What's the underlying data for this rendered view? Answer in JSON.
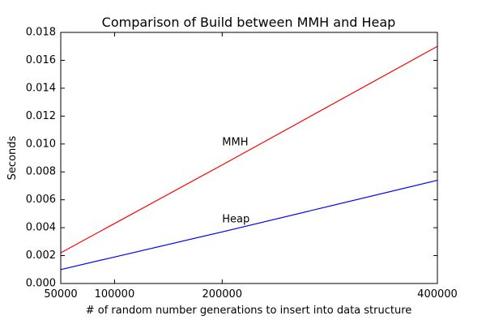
{
  "chart_data": {
    "type": "line",
    "title": "Comparison of Build between MMH and Heap",
    "xlabel": "# of random number generations to insert into data structure",
    "ylabel": "Seconds",
    "xlim": [
      50000,
      400000
    ],
    "ylim": [
      0,
      0.018
    ],
    "x_ticks": [
      {
        "value": 50000,
        "label": "50000"
      },
      {
        "value": 100000,
        "label": "100000"
      },
      {
        "value": 200000,
        "label": "200000"
      },
      {
        "value": 400000,
        "label": "400000"
      }
    ],
    "y_ticks": [
      {
        "value": 0,
        "label": "0.000"
      },
      {
        "value": 0.002,
        "label": "0.002"
      },
      {
        "value": 0.004,
        "label": "0.004"
      },
      {
        "value": 0.006,
        "label": "0.006"
      },
      {
        "value": 0.008,
        "label": "0.008"
      },
      {
        "value": 0.01,
        "label": "0.010"
      },
      {
        "value": 0.012,
        "label": "0.012"
      },
      {
        "value": 0.014,
        "label": "0.014"
      },
      {
        "value": 0.016,
        "label": "0.016"
      },
      {
        "value": 0.018,
        "label": "0.018"
      }
    ],
    "grid": false,
    "series": [
      {
        "key": "mmh",
        "color": "#ff0000",
        "x": [
          50000,
          100000,
          200000,
          400000
        ],
        "y": [
          0.0022,
          0.0043,
          0.0085,
          0.017
        ]
      },
      {
        "key": "heap",
        "color": "#0000ff",
        "x": [
          50000,
          100000,
          200000,
          400000
        ],
        "y": [
          0.001,
          0.0019,
          0.0037,
          0.0074
        ]
      }
    ],
    "annotations": [
      {
        "text": "MMH",
        "x": 200000,
        "y": 0.0101
      },
      {
        "text": "Heap",
        "x": 200000,
        "y": 0.0046
      }
    ]
  }
}
